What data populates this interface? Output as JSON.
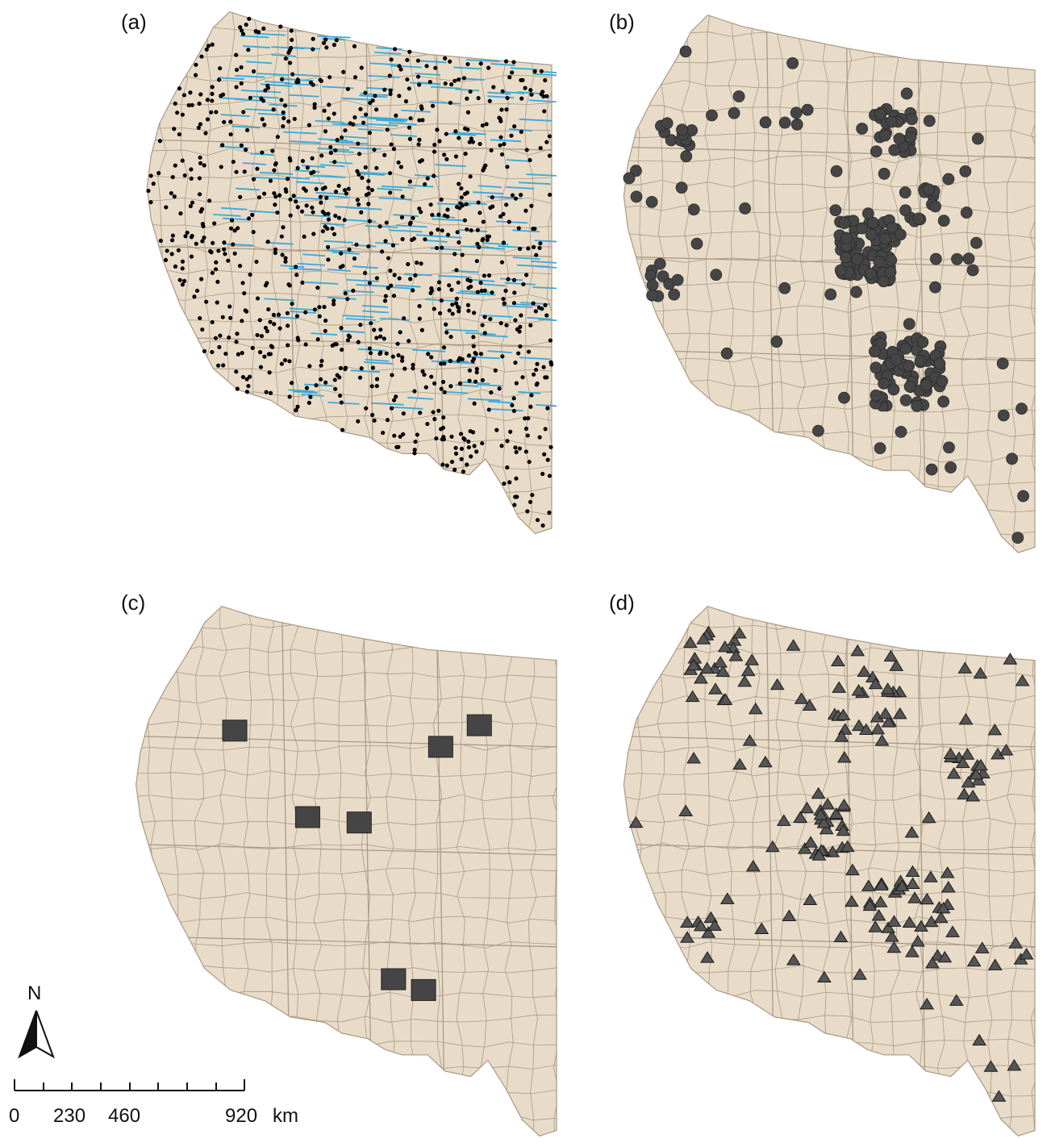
{
  "panels": [
    {
      "label": "(a)",
      "marker": "dot-with-line-tracks"
    },
    {
      "label": "(b)",
      "marker": "large-dot"
    },
    {
      "label": "(c)",
      "marker": "square"
    },
    {
      "label": "(d)",
      "marker": "triangle"
    }
  ],
  "colors": {
    "land": "#e8dcc8",
    "border": "#a89a86",
    "marker_black": "#050505",
    "marker_gray": "#454545",
    "track_blue": "#3aa8d8"
  },
  "north_arrow": {
    "label": "N"
  },
  "scale_bar": {
    "ticks": [
      "0",
      "230",
      "460",
      "920"
    ],
    "unit": "km"
  }
}
